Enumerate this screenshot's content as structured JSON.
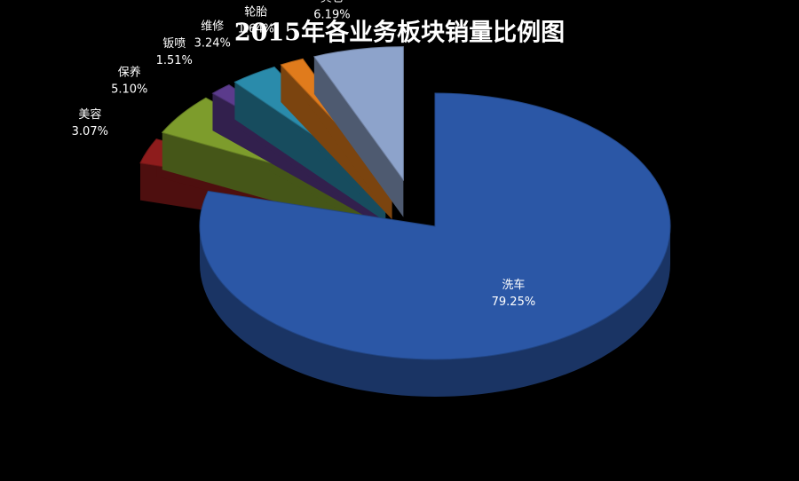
{
  "chart_data": {
    "type": "pie",
    "title": "2015年各业务板块销量比例图",
    "categories": [
      "洗车",
      "美容",
      "保养",
      "钣喷",
      "维修",
      "轮胎",
      "其它"
    ],
    "values": [
      79.25,
      3.07,
      5.1,
      1.51,
      3.24,
      1.64,
      6.19
    ],
    "value_labels": [
      "79.25%",
      "3.07%",
      "5.10%",
      "1.51%",
      "3.24%",
      "1.64%",
      "6.19%"
    ],
    "colors": [
      "#2b57a6",
      "#8e1c1c",
      "#7d9c2c",
      "#5b3b8c",
      "#2a8bab",
      "#e07b1c",
      "#8da3cb"
    ]
  }
}
